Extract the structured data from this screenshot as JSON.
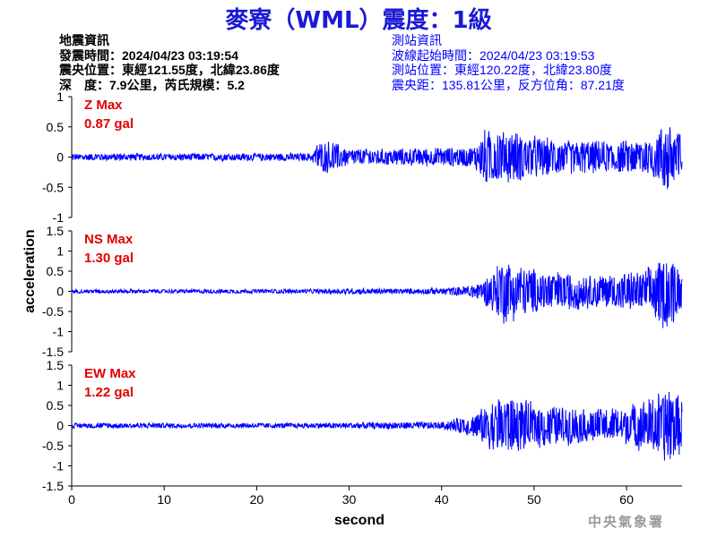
{
  "title": "麥寮（WML）震度：1級",
  "info_left": [
    "地震資訊",
    "發震時間：2024/04/23 03:19:54",
    "震央位置：東經121.55度，北緯23.86度",
    "深　度：7.9公里，芮氏規模：5.2"
  ],
  "info_right": [
    "測站資訊",
    "波線起始時間：2024/04/23 03:19:53",
    "測站位置：東經120.22度，北緯23.80度",
    "震央距：135.81公里，反方位角：87.21度"
  ],
  "watermark": "中央氣象署",
  "chart_data": {
    "type": "line",
    "xlabel": "second",
    "ylabel": "acceleration",
    "xlim": [
      0,
      66
    ],
    "xticks": [
      "0",
      "10",
      "20",
      "30",
      "40",
      "50",
      "60"
    ],
    "grid": false,
    "line_color": "#0000ff",
    "label_color": "#e00000",
    "panels": [
      {
        "name": "Z",
        "max_label": "Z Max",
        "max_value": "0.87 gal",
        "ylim": [
          -1,
          1
        ],
        "yticks": [
          "1",
          "0.5",
          "0",
          "-0.5",
          "-1"
        ],
        "envelope": [
          [
            0,
            0.06
          ],
          [
            26,
            0.07
          ],
          [
            26.5,
            0.25
          ],
          [
            28,
            0.3
          ],
          [
            30,
            0.15
          ],
          [
            35,
            0.15
          ],
          [
            43.5,
            0.18
          ],
          [
            44.5,
            0.5
          ],
          [
            48,
            0.45
          ],
          [
            52,
            0.32
          ],
          [
            55,
            0.3
          ],
          [
            58,
            0.28
          ],
          [
            61,
            0.3
          ],
          [
            63,
            0.4
          ],
          [
            64.5,
            0.7
          ],
          [
            66,
            0.5
          ]
        ]
      },
      {
        "name": "NS",
        "max_label": "NS Max",
        "max_value": "1.30 gal",
        "ylim": [
          -1.5,
          1.5
        ],
        "yticks": [
          "1.5",
          "1",
          "0.5",
          "0",
          "-0.5",
          "-1",
          "-1.5"
        ],
        "envelope": [
          [
            0,
            0.05
          ],
          [
            26,
            0.06
          ],
          [
            30,
            0.08
          ],
          [
            38,
            0.07
          ],
          [
            42,
            0.12
          ],
          [
            44.5,
            0.28
          ],
          [
            46.5,
            0.9
          ],
          [
            49,
            0.65
          ],
          [
            52,
            0.55
          ],
          [
            56,
            0.45
          ],
          [
            60,
            0.5
          ],
          [
            62,
            0.55
          ],
          [
            63.5,
            0.9
          ],
          [
            64.5,
            1.1
          ],
          [
            66,
            0.5
          ]
        ]
      },
      {
        "name": "EW",
        "max_label": "EW Max",
        "max_value": "1.22 gal",
        "ylim": [
          -1.5,
          1.5
        ],
        "yticks": [
          "1.5",
          "1",
          "0.5",
          "0",
          "-0.5",
          "-1",
          "-1.5"
        ],
        "envelope": [
          [
            0,
            0.07
          ],
          [
            26,
            0.07
          ],
          [
            34,
            0.09
          ],
          [
            40,
            0.1
          ],
          [
            43.5,
            0.3
          ],
          [
            46.5,
            0.85
          ],
          [
            50,
            0.6
          ],
          [
            52,
            0.55
          ],
          [
            56,
            0.45
          ],
          [
            60,
            0.5
          ],
          [
            62.5,
            0.75
          ],
          [
            64.5,
            1.1
          ],
          [
            66,
            0.7
          ]
        ]
      }
    ]
  }
}
